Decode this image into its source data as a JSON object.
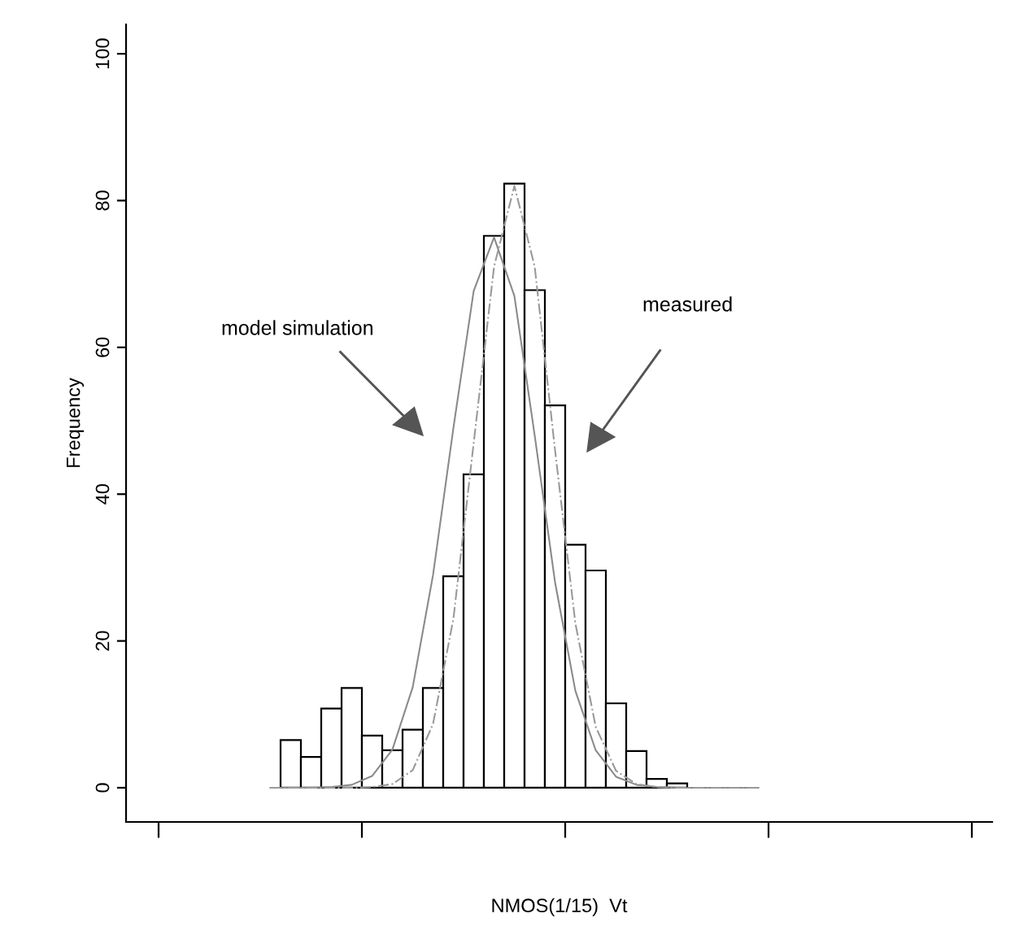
{
  "chart_data": {
    "type": "bar",
    "xlabel": "NMOS(1/15)  Vt",
    "ylabel": "Frequency",
    "categories": [
      null,
      null,
      null,
      null,
      null,
      null,
      null,
      null,
      null,
      null,
      null,
      null,
      null,
      null,
      null,
      null,
      null,
      null,
      null,
      null,
      null,
      null,
      null,
      null,
      null
    ],
    "series": [
      {
        "color": "#ffffff",
        "values": [
          null,
          6.5,
          4.2,
          10.8,
          13.6,
          7.1,
          5.1,
          7.9,
          13.6,
          28.8,
          42.7,
          75.2,
          82.3,
          67.8,
          52.1,
          33.1,
          29.6,
          11.5,
          5.0,
          1.2,
          0.6,
          null,
          null,
          null,
          null
        ]
      },
      {
        "type": "line",
        "color": "#8a8a8a",
        "line_style": "solid",
        "values": [
          0,
          0,
          0,
          0.1,
          0.4,
          1.6,
          5.2,
          13.7,
          29,
          49,
          67.7,
          75,
          67,
          48,
          28,
          13.2,
          5.1,
          1.5,
          0.4,
          0.1,
          0,
          0,
          0,
          0,
          0
        ]
      },
      {
        "type": "line",
        "color": "#9a9a9a",
        "line_style": "dashdot",
        "values": [
          0,
          0,
          0,
          0,
          0,
          0.1,
          0.5,
          2.4,
          8.7,
          23,
          47,
          71,
          82,
          71,
          46,
          22.4,
          8.3,
          2.3,
          0.5,
          0.1,
          0,
          0,
          0,
          0,
          0
        ]
      }
    ],
    "ylim": [
      -4.66,
      104
    ],
    "yticks": [
      0,
      20,
      40,
      60,
      80,
      100
    ],
    "annotations": [
      "model simulation",
      "measured"
    ]
  }
}
